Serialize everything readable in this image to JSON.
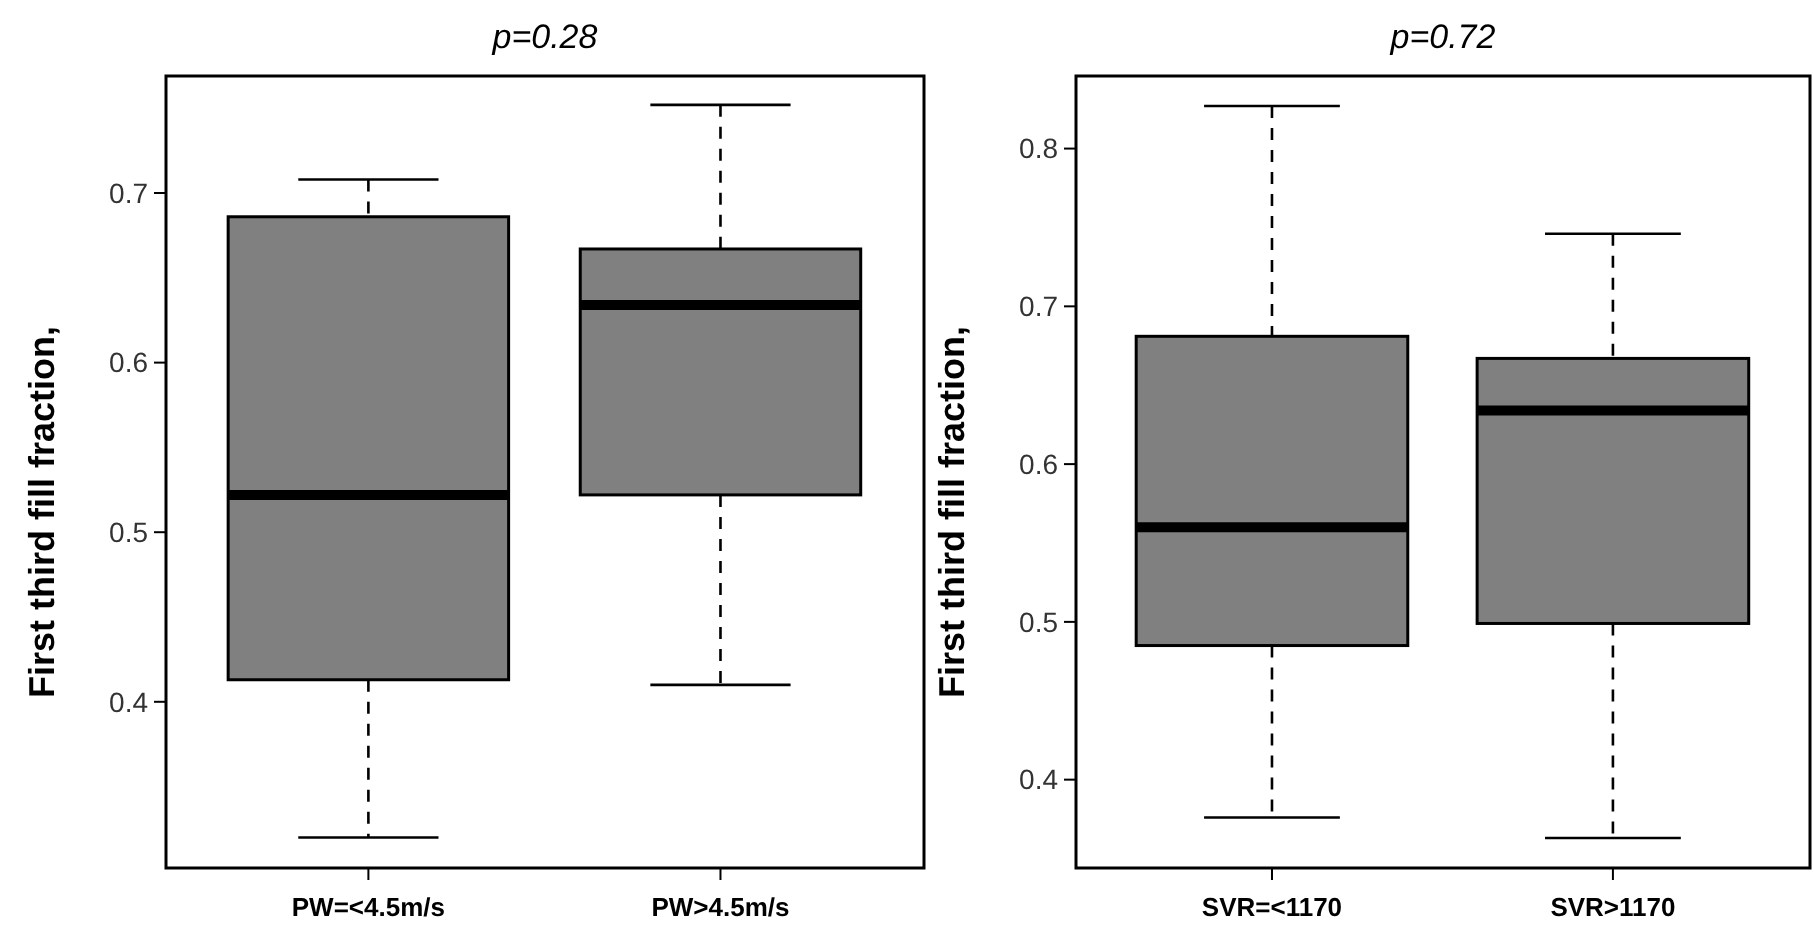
{
  "chart_data": [
    {
      "type": "box",
      "title": "p=0.28",
      "ylabel": "First third fill fraction,",
      "categories": [
        "PW=<4.5m/s",
        "PW>4.5m/s"
      ],
      "color": "#808080",
      "ylim": [
        0.302,
        0.769
      ],
      "yticks": [
        0.4,
        0.5,
        0.6,
        0.7
      ],
      "grid": false,
      "boxes": [
        {
          "low": 0.32,
          "q1": 0.413,
          "median": 0.522,
          "q3": 0.686,
          "high": 0.708
        },
        {
          "low": 0.41,
          "q1": 0.522,
          "median": 0.634,
          "q3": 0.667,
          "high": 0.752
        }
      ]
    },
    {
      "type": "box",
      "title": "p=0.72",
      "ylabel": "First third fill fraction,",
      "categories": [
        "SVR=<1170",
        "SVR>1170"
      ],
      "color": "#808080",
      "ylim": [
        0.344,
        0.846
      ],
      "yticks": [
        0.4,
        0.5,
        0.6,
        0.7,
        0.8
      ],
      "grid": false,
      "boxes": [
        {
          "low": 0.376,
          "q1": 0.485,
          "median": 0.56,
          "q3": 0.681,
          "high": 0.827
        },
        {
          "low": 0.363,
          "q1": 0.499,
          "median": 0.634,
          "q3": 0.667,
          "high": 0.746
        }
      ]
    }
  ]
}
